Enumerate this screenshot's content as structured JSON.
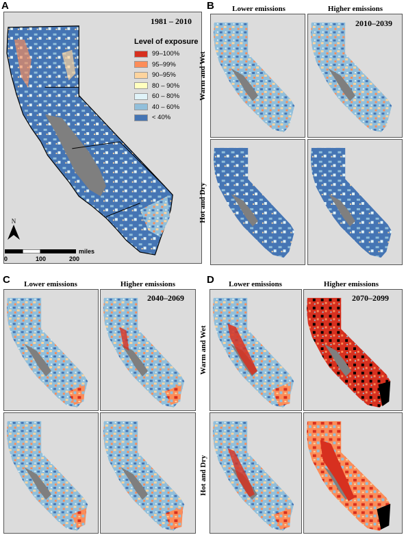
{
  "colors": {
    "c99_100": "#d7301f",
    "c95_99": "#fc8d59",
    "c90_95": "#fdd49e",
    "c80_90": "#ffffbf",
    "c60_80": "#e0f3f8",
    "c40_60": "#91bfdb",
    "c_lt40": "#4575b4",
    "excluded": "#7f7f7f",
    "black": "#000000",
    "background": "#dcdcdc"
  },
  "panels": {
    "A": {
      "letter": "A",
      "period": "1981 – 2010"
    },
    "B": {
      "letter": "B",
      "period": "2010–2039",
      "col_lower": "Lower emissions",
      "col_higher": "Higher emissions",
      "row_warm": "Warm and Wet",
      "row_hot": "Hot and Dry"
    },
    "C": {
      "letter": "C",
      "period": "2040–2069",
      "col_lower": "Lower emissions",
      "col_higher": "Higher emissions"
    },
    "D": {
      "letter": "D",
      "period": "2070–2099",
      "col_lower": "Lower emissions",
      "col_higher": "Higher emissions",
      "row_warm": "Warm and Wet",
      "row_hot": "Hot and Dry"
    }
  },
  "legend": {
    "title": "Level of exposure",
    "items": [
      {
        "label": "99–100%",
        "color": "#d7301f"
      },
      {
        "label": "95–99%",
        "color": "#fc8d59"
      },
      {
        "label": "90–95%",
        "color": "#fdd49e"
      },
      {
        "label": "80 – 90%",
        "color": "#ffffbf"
      },
      {
        "label": "60 – 80%",
        "color": "#e0f3f8"
      },
      {
        "label": "40 – 60%",
        "color": "#91bfdb"
      },
      {
        "label": "< 40%",
        "color": "#4575b4"
      }
    ]
  },
  "north_arrow": {
    "label": "N"
  },
  "scale_bar": {
    "unit": "miles",
    "ticks": [
      "0",
      "100",
      "200"
    ]
  }
}
